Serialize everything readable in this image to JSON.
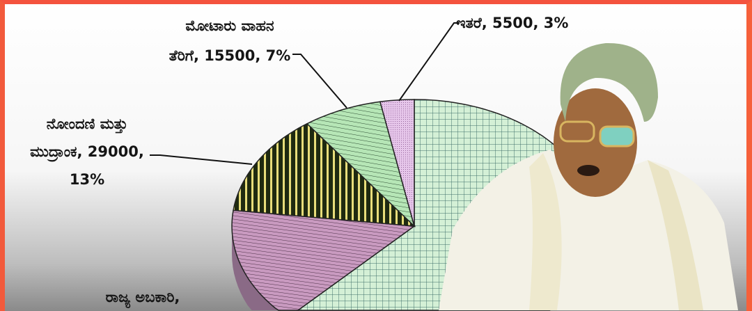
{
  "chart_data": {
    "type": "pie",
    "style": "3d-tilted, hatched fills",
    "slices": [
      {
        "label": "",
        "value": null,
        "percent": 61,
        "color": "#cfeed0",
        "pattern": "grid"
      },
      {
        "label_lines": [
          "ರಾಜ್ಯ ಅಬಕಾರಿ,"
        ],
        "value": null,
        "percent": 16,
        "color": "#c99ac0",
        "pattern": "horizontal-lines"
      },
      {
        "label_lines": [
          "ನೋಂದಣಿ ಮತ್ತು",
          "ಮುದ್ರಾಂಕ, 29000,",
          "13%"
        ],
        "value": 29000,
        "percent": 13,
        "color": "#e8dd7a",
        "pattern": "vertical-stripes"
      },
      {
        "label_lines": [
          "ಮೋಟಾರು ವಾಹನ",
          "ತೆರಿಗೆ, 15500, 7%"
        ],
        "value": 15500,
        "percent": 7,
        "color": "#b6e6b6",
        "pattern": "horizontal-lines"
      },
      {
        "label_lines": [
          "ಇತರೆ, 5500, 3%"
        ],
        "value": 5500,
        "percent": 3,
        "color": "#e6c6ea",
        "pattern": "fine-dots"
      }
    ],
    "legend": "none (data labels with leader lines)"
  },
  "frame_color": "#f4533e"
}
